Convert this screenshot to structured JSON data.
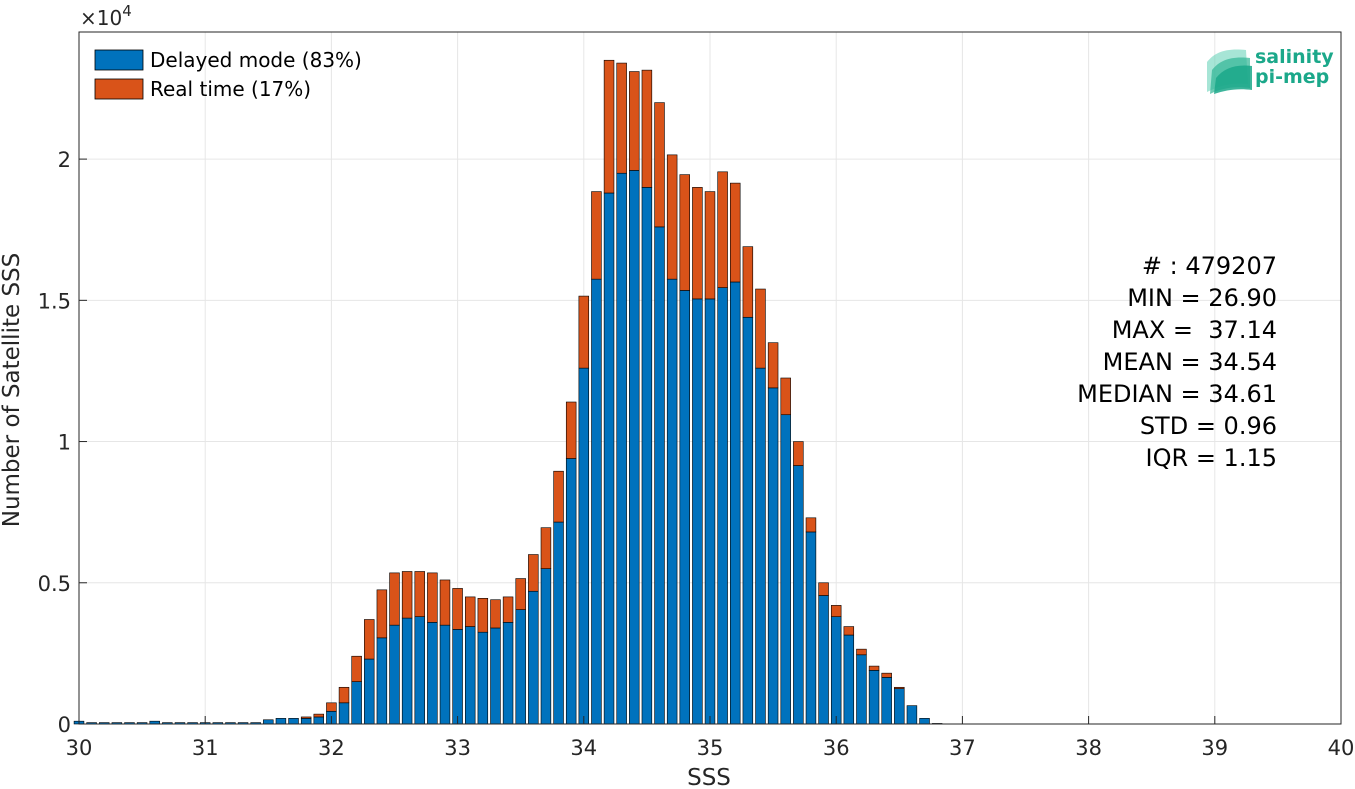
{
  "chart_data": {
    "type": "bar",
    "stacked": true,
    "xlabel": "SSS",
    "ylabel": "Number of Satellite SSS",
    "y_exponent_label": "×10",
    "y_exponent_power": "4",
    "xlim": [
      30,
      40
    ],
    "ylim": [
      0,
      24500
    ],
    "xticks": [
      30,
      31,
      32,
      33,
      34,
      35,
      36,
      37,
      38,
      39,
      40
    ],
    "xtick_labels": [
      "30",
      "31",
      "32",
      "33",
      "34",
      "35",
      "36",
      "37",
      "38",
      "39",
      "40"
    ],
    "yticks": [
      0,
      5000,
      10000,
      15000,
      20000
    ],
    "ytick_labels": [
      "0",
      "0.5",
      "1",
      "1.5",
      "2"
    ],
    "grid": true,
    "legend_position": "top-left",
    "bin_width": 0.1,
    "x": [
      30.0,
      30.1,
      30.2,
      30.3,
      30.4,
      30.5,
      30.6,
      30.7,
      30.8,
      30.9,
      31.0,
      31.1,
      31.2,
      31.3,
      31.4,
      31.5,
      31.6,
      31.7,
      31.8,
      31.9,
      32.0,
      32.1,
      32.2,
      32.3,
      32.4,
      32.5,
      32.6,
      32.7,
      32.8,
      32.9,
      33.0,
      33.1,
      33.2,
      33.3,
      33.4,
      33.5,
      33.6,
      33.7,
      33.8,
      33.9,
      34.0,
      34.1,
      34.2,
      34.3,
      34.4,
      34.5,
      34.6,
      34.7,
      34.8,
      34.9,
      35.0,
      35.1,
      35.2,
      35.3,
      35.4,
      35.5,
      35.6,
      35.7,
      35.8,
      35.9,
      36.0,
      36.1,
      36.2,
      36.3,
      36.4,
      36.5,
      36.6,
      36.7,
      36.8,
      36.9
    ],
    "series": [
      {
        "name": "Delayed mode (83%)",
        "color": "#0072BD",
        "values": [
          100,
          50,
          50,
          50,
          50,
          50,
          100,
          50,
          50,
          50,
          50,
          50,
          50,
          50,
          50,
          150,
          200,
          200,
          200,
          250,
          450,
          750,
          1500,
          2300,
          3050,
          3500,
          3750,
          3800,
          3600,
          3500,
          3350,
          3450,
          3250,
          3400,
          3600,
          4050,
          4700,
          5500,
          7150,
          9400,
          12600,
          15750,
          18800,
          19500,
          19600,
          19000,
          17600,
          15750,
          15350,
          15050,
          15050,
          15450,
          15650,
          14400,
          12600,
          11900,
          10950,
          9150,
          6800,
          4550,
          3800,
          3150,
          2450,
          1900,
          1650,
          1250,
          650,
          200,
          20,
          0
        ]
      },
      {
        "name": "Real time (17%)",
        "color": "#D95319",
        "values": [
          0,
          0,
          0,
          0,
          0,
          0,
          0,
          0,
          0,
          0,
          0,
          0,
          0,
          0,
          0,
          0,
          0,
          0,
          50,
          100,
          300,
          550,
          900,
          1400,
          1700,
          1850,
          1650,
          1600,
          1750,
          1600,
          1450,
          1050,
          1200,
          1000,
          900,
          1100,
          1300,
          1450,
          1800,
          2000,
          2550,
          3100,
          4700,
          3900,
          3500,
          4150,
          4400,
          4400,
          4100,
          3950,
          3800,
          4100,
          3500,
          2500,
          2800,
          1600,
          1300,
          850,
          500,
          450,
          400,
          300,
          200,
          150,
          150,
          50,
          0,
          0,
          0,
          0
        ]
      }
    ]
  },
  "stats": [
    "# : 479207",
    "MIN = 26.90",
    "MAX =  37.14",
    "MEAN = 34.54",
    "MEDIAN = 34.61",
    "STD = 0.96",
    "IQR = 1.15"
  ],
  "logo": {
    "line1": "salinity",
    "line2": "pi-mep",
    "color": "#1BA88A"
  }
}
